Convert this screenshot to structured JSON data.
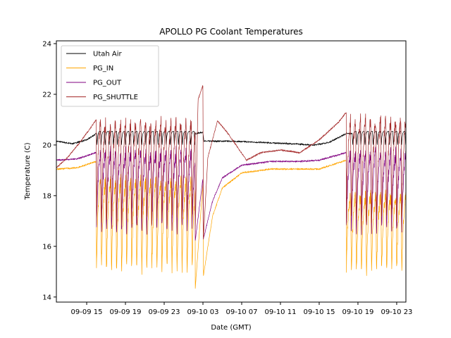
{
  "chart_data": {
    "type": "line",
    "title": "APOLLO PG Coolant Temperatures",
    "xlabel": "Date (GMT)",
    "ylabel": "Temperature (C)",
    "x_units": "hours since 09-09 00:00 GMT",
    "xlim": [
      11.87,
      47.95
    ],
    "ylim": [
      13.8,
      24.11
    ],
    "x_ticks": [
      {
        "value": 15,
        "label": "09-09 15"
      },
      {
        "value": 19,
        "label": "09-09 19"
      },
      {
        "value": 23,
        "label": "09-09 23"
      },
      {
        "value": 27,
        "label": "09-10 03"
      },
      {
        "value": 31,
        "label": "09-10 07"
      },
      {
        "value": 35,
        "label": "09-10 11"
      },
      {
        "value": 39,
        "label": "09-10 15"
      },
      {
        "value": 43,
        "label": "09-10 19"
      },
      {
        "value": 47,
        "label": "09-10 23"
      }
    ],
    "y_ticks": [
      {
        "value": 14,
        "label": "14"
      },
      {
        "value": 16,
        "label": "16"
      },
      {
        "value": 18,
        "label": "18"
      },
      {
        "value": 20,
        "label": "20"
      },
      {
        "value": 22,
        "label": "22"
      },
      {
        "value": 24,
        "label": "24"
      }
    ],
    "grid": false,
    "legend_position": "top-left",
    "series": [
      {
        "name": "Utah Air",
        "color": "#000000",
        "steady": [
          [
            11.87,
            20.15
          ],
          [
            13.5,
            20.05
          ],
          [
            15.0,
            20.2
          ],
          [
            16.0,
            20.45
          ],
          [
            26.2,
            20.45
          ],
          [
            27.0,
            20.5
          ],
          [
            27.1,
            20.15
          ],
          [
            30,
            20.15
          ],
          [
            33,
            20.1
          ],
          [
            36,
            20.05
          ],
          [
            38.5,
            20.0
          ],
          [
            40,
            20.1
          ],
          [
            41.8,
            20.45
          ],
          [
            47.95,
            20.45
          ]
        ],
        "cycles": [
          {
            "start": 16.0,
            "end": 26.2,
            "period": 0.42,
            "high": 20.55,
            "low": 19.95
          },
          {
            "start": 42.4,
            "end": 47.95,
            "period": 0.42,
            "high": 20.55,
            "low": 19.95
          }
        ]
      },
      {
        "name": "PG_IN",
        "color": "#ffa500",
        "steady": [
          [
            11.87,
            19.05
          ],
          [
            14,
            19.1
          ],
          [
            16.0,
            19.35
          ],
          [
            16.05,
            14.3
          ],
          [
            26.2,
            14.3
          ],
          [
            27.0,
            18.5
          ],
          [
            27.05,
            14.85
          ],
          [
            28,
            17.2
          ],
          [
            29,
            18.3
          ],
          [
            31,
            18.9
          ],
          [
            34,
            19.05
          ],
          [
            37,
            19.05
          ],
          [
            39,
            19.05
          ],
          [
            41.8,
            19.4
          ],
          [
            41.85,
            15.2
          ],
          [
            47.95,
            15.2
          ]
        ],
        "cycles": [
          {
            "start": 16.0,
            "end": 26.2,
            "period": 0.52,
            "high": 18.6,
            "low": 14.9
          },
          {
            "start": 41.8,
            "end": 47.95,
            "period": 0.52,
            "high": 18.0,
            "low": 14.9
          }
        ]
      },
      {
        "name": "PG_OUT",
        "color": "#800080",
        "steady": [
          [
            11.87,
            19.4
          ],
          [
            14,
            19.45
          ],
          [
            16.0,
            19.7
          ],
          [
            16.05,
            16.2
          ],
          [
            26.2,
            16.2
          ],
          [
            27.0,
            18.7
          ],
          [
            27.05,
            16.3
          ],
          [
            28,
            17.8
          ],
          [
            29,
            18.7
          ],
          [
            31,
            19.2
          ],
          [
            34,
            19.35
          ],
          [
            37,
            19.35
          ],
          [
            39,
            19.4
          ],
          [
            41.8,
            19.7
          ],
          [
            41.85,
            16.5
          ],
          [
            47.95,
            16.5
          ]
        ],
        "cycles": [
          {
            "start": 16.0,
            "end": 26.2,
            "period": 0.52,
            "high": 19.7,
            "low": 16.5
          },
          {
            "start": 41.8,
            "end": 47.95,
            "period": 0.52,
            "high": 19.7,
            "low": 16.5
          }
        ]
      },
      {
        "name": "PG_SHUTTLE",
        "color": "#a52a2a",
        "steady": [
          [
            11.87,
            19.1
          ],
          [
            13,
            19.5
          ],
          [
            14.5,
            20.2
          ],
          [
            16.0,
            21.0
          ],
          [
            16.05,
            16.5
          ],
          [
            26.2,
            16.5
          ],
          [
            26.5,
            21.8
          ],
          [
            27.0,
            22.35
          ],
          [
            27.05,
            16.3
          ],
          [
            27.5,
            19.5
          ],
          [
            28.5,
            20.95
          ],
          [
            29.5,
            20.5
          ],
          [
            31.5,
            19.4
          ],
          [
            33,
            19.7
          ],
          [
            35,
            19.8
          ],
          [
            37,
            19.7
          ],
          [
            39,
            20.2
          ],
          [
            41,
            20.9
          ],
          [
            41.8,
            21.3
          ],
          [
            41.85,
            16.2
          ],
          [
            47.95,
            16.2
          ]
        ],
        "cycles": [
          {
            "start": 16.0,
            "end": 26.2,
            "period": 0.52,
            "high": 20.9,
            "low": 16.8
          },
          {
            "start": 41.8,
            "end": 47.95,
            "period": 0.52,
            "high": 21.0,
            "low": 16.8
          }
        ]
      }
    ],
    "legend": [
      {
        "label": "Utah Air",
        "color": "#000000"
      },
      {
        "label": "PG_IN",
        "color": "#ffa500"
      },
      {
        "label": "PG_OUT",
        "color": "#800080"
      },
      {
        "label": "PG_SHUTTLE",
        "color": "#a52a2a"
      }
    ]
  }
}
